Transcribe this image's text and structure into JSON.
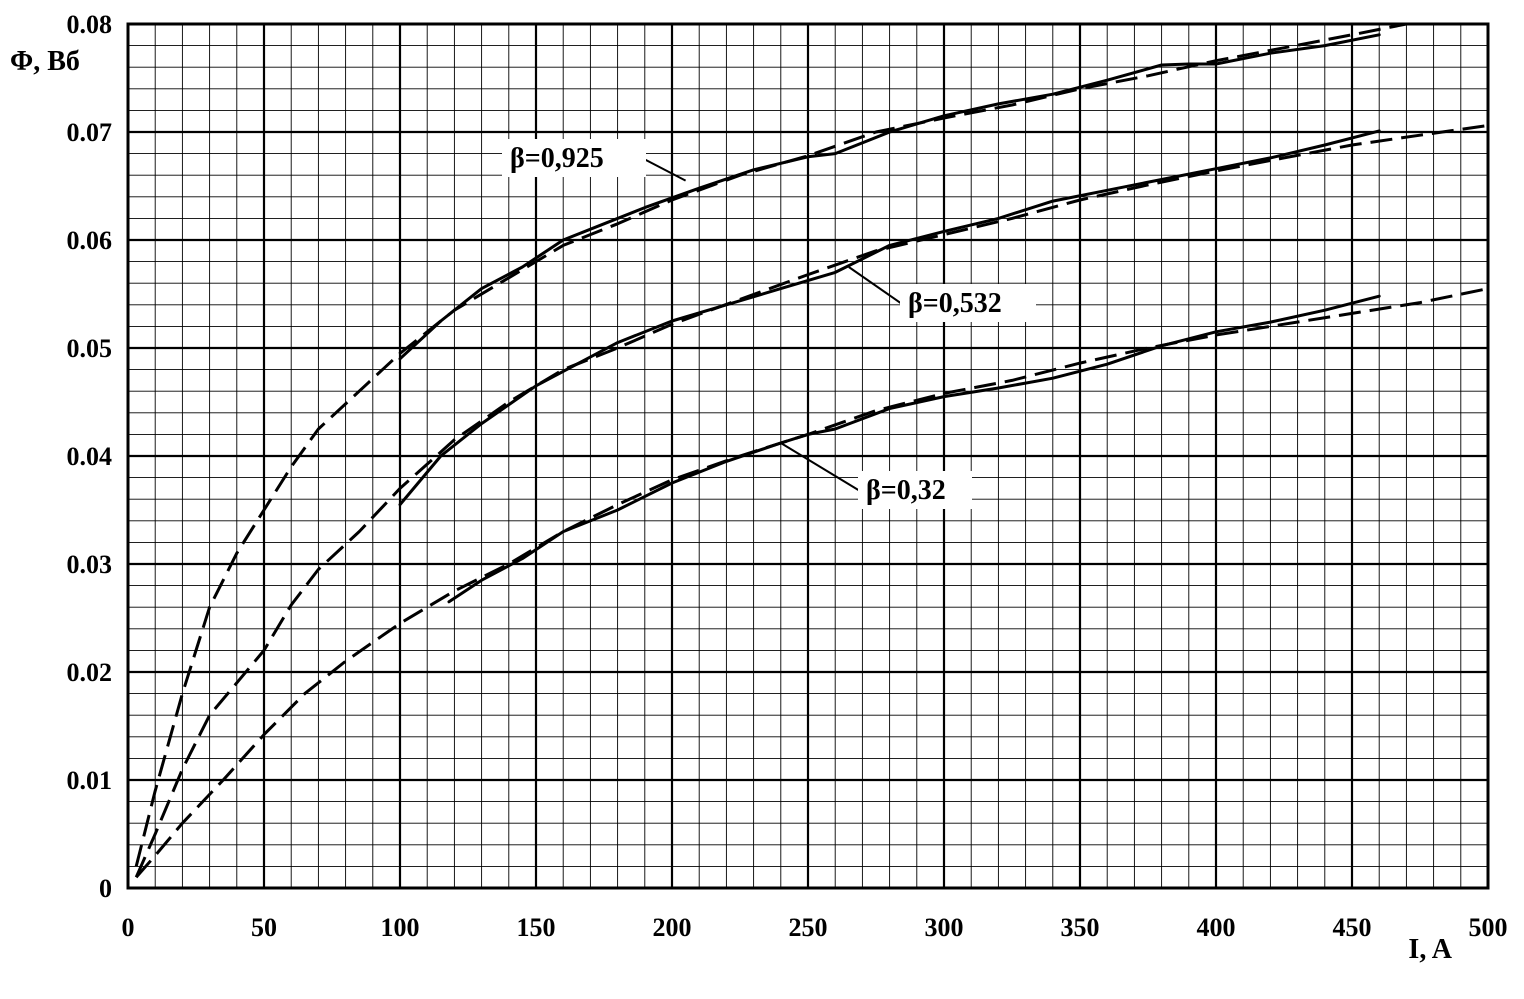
{
  "chart_data": {
    "type": "line",
    "title": "",
    "xlabel": "I, A",
    "ylabel": "Φ, Вб",
    "xlim": [
      0,
      500
    ],
    "ylim": [
      0,
      0.08
    ],
    "x_ticks": [
      0,
      50,
      100,
      150,
      200,
      250,
      300,
      350,
      400,
      450,
      500
    ],
    "x_tick_labels": [
      "0",
      "50",
      "100",
      "150",
      "200",
      "250",
      "300",
      "350",
      "400",
      "450",
      "500"
    ],
    "y_ticks": [
      0,
      0.01,
      0.02,
      0.03,
      0.04,
      0.05,
      0.06,
      0.07,
      0.08
    ],
    "y_tick_labels": [
      "0",
      "0.01",
      "0.02",
      "0.03",
      "0.04",
      "0.05",
      "0.06",
      "0.07",
      "0.08"
    ],
    "grid": {
      "major": true,
      "minor": true,
      "minor_x_step": 10,
      "minor_y_step": 0.002
    },
    "legend": "none",
    "series": [
      {
        "style": "solid",
        "points": [
          [
            100,
            0.049
          ],
          [
            115,
            0.0525
          ],
          [
            130,
            0.0555
          ],
          [
            145,
            0.0575
          ],
          [
            160,
            0.06
          ],
          [
            175,
            0.0615
          ],
          [
            190,
            0.063
          ],
          [
            210,
            0.0648
          ],
          [
            230,
            0.0665
          ],
          [
            250,
            0.0677
          ],
          [
            260,
            0.068
          ],
          [
            280,
            0.07
          ],
          [
            300,
            0.0715
          ],
          [
            320,
            0.0726
          ],
          [
            340,
            0.0735
          ],
          [
            360,
            0.0748
          ],
          [
            380,
            0.0762
          ],
          [
            390,
            0.0763
          ],
          [
            400,
            0.0763
          ],
          [
            420,
            0.0773
          ],
          [
            440,
            0.078
          ],
          [
            460,
            0.079
          ]
        ]
      },
      {
        "style": "dashed",
        "points": [
          [
            3,
            0.002
          ],
          [
            10,
            0.009
          ],
          [
            20,
            0.018
          ],
          [
            30,
            0.026
          ],
          [
            40,
            0.031
          ],
          [
            50,
            0.035
          ],
          [
            60,
            0.039
          ],
          [
            70,
            0.0425
          ],
          [
            85,
            0.046
          ],
          [
            100,
            0.0495
          ],
          [
            120,
            0.0535
          ],
          [
            140,
            0.0565
          ],
          [
            160,
            0.0595
          ],
          [
            180,
            0.0615
          ],
          [
            200,
            0.0637
          ],
          [
            225,
            0.066
          ],
          [
            250,
            0.0678
          ],
          [
            275,
            0.07
          ],
          [
            300,
            0.0713
          ],
          [
            325,
            0.0725
          ],
          [
            350,
            0.074
          ],
          [
            375,
            0.0752
          ],
          [
            400,
            0.0766
          ],
          [
            425,
            0.0778
          ],
          [
            450,
            0.079
          ],
          [
            470,
            0.08
          ]
        ]
      },
      {
        "style": "solid",
        "points": [
          [
            100,
            0.0355
          ],
          [
            115,
            0.04
          ],
          [
            130,
            0.043
          ],
          [
            150,
            0.0465
          ],
          [
            165,
            0.0485
          ],
          [
            180,
            0.0505
          ],
          [
            200,
            0.0525
          ],
          [
            220,
            0.054
          ],
          [
            240,
            0.0555
          ],
          [
            260,
            0.057
          ],
          [
            280,
            0.0595
          ],
          [
            300,
            0.0608
          ],
          [
            320,
            0.062
          ],
          [
            340,
            0.0636
          ],
          [
            360,
            0.0646
          ],
          [
            380,
            0.0656
          ],
          [
            400,
            0.0666
          ],
          [
            420,
            0.0676
          ],
          [
            440,
            0.0688
          ],
          [
            460,
            0.0701
          ]
        ]
      },
      {
        "style": "dashed",
        "points": [
          [
            3,
            0.001
          ],
          [
            10,
            0.005
          ],
          [
            20,
            0.011
          ],
          [
            30,
            0.016
          ],
          [
            40,
            0.019
          ],
          [
            50,
            0.022
          ],
          [
            60,
            0.0262
          ],
          [
            70,
            0.0295
          ],
          [
            85,
            0.033
          ],
          [
            100,
            0.037
          ],
          [
            120,
            0.0415
          ],
          [
            140,
            0.045
          ],
          [
            160,
            0.048
          ],
          [
            180,
            0.05
          ],
          [
            200,
            0.0522
          ],
          [
            225,
            0.0545
          ],
          [
            250,
            0.0568
          ],
          [
            275,
            0.059
          ],
          [
            300,
            0.0605
          ],
          [
            325,
            0.062
          ],
          [
            350,
            0.0637
          ],
          [
            375,
            0.0651
          ],
          [
            400,
            0.0664
          ],
          [
            425,
            0.0676
          ],
          [
            450,
            0.0688
          ],
          [
            475,
            0.0697
          ],
          [
            500,
            0.0706
          ]
        ]
      },
      {
        "style": "solid",
        "points": [
          [
            118,
            0.0265
          ],
          [
            130,
            0.0285
          ],
          [
            145,
            0.0305
          ],
          [
            160,
            0.033
          ],
          [
            180,
            0.035
          ],
          [
            200,
            0.0375
          ],
          [
            220,
            0.0395
          ],
          [
            240,
            0.0412
          ],
          [
            250,
            0.042
          ],
          [
            260,
            0.0425
          ],
          [
            280,
            0.0444
          ],
          [
            300,
            0.0455
          ],
          [
            320,
            0.0463
          ],
          [
            340,
            0.0472
          ],
          [
            360,
            0.0485
          ],
          [
            380,
            0.0502
          ],
          [
            400,
            0.0515
          ],
          [
            420,
            0.0524
          ],
          [
            440,
            0.0535
          ],
          [
            460,
            0.0548
          ]
        ]
      },
      {
        "style": "dashed",
        "points": [
          [
            3,
            0.001
          ],
          [
            10,
            0.003
          ],
          [
            20,
            0.006
          ],
          [
            35,
            0.01
          ],
          [
            50,
            0.0142
          ],
          [
            65,
            0.018
          ],
          [
            80,
            0.021
          ],
          [
            100,
            0.0245
          ],
          [
            120,
            0.0275
          ],
          [
            140,
            0.03
          ],
          [
            160,
            0.033
          ],
          [
            180,
            0.0355
          ],
          [
            200,
            0.0378
          ],
          [
            225,
            0.04
          ],
          [
            250,
            0.042
          ],
          [
            275,
            0.0442
          ],
          [
            300,
            0.0458
          ],
          [
            325,
            0.047
          ],
          [
            350,
            0.0486
          ],
          [
            375,
            0.05
          ],
          [
            400,
            0.0512
          ],
          [
            425,
            0.0522
          ],
          [
            450,
            0.0532
          ],
          [
            475,
            0.0542
          ],
          [
            500,
            0.0555
          ]
        ]
      }
    ],
    "annotations": [
      {
        "text": "β=0,925",
        "x": 205,
        "y": 0.0655
      },
      {
        "text": "β=0,532",
        "x": 265,
        "y": 0.0575
      },
      {
        "text": "β=0,32",
        "x": 240,
        "y": 0.0412
      }
    ]
  }
}
